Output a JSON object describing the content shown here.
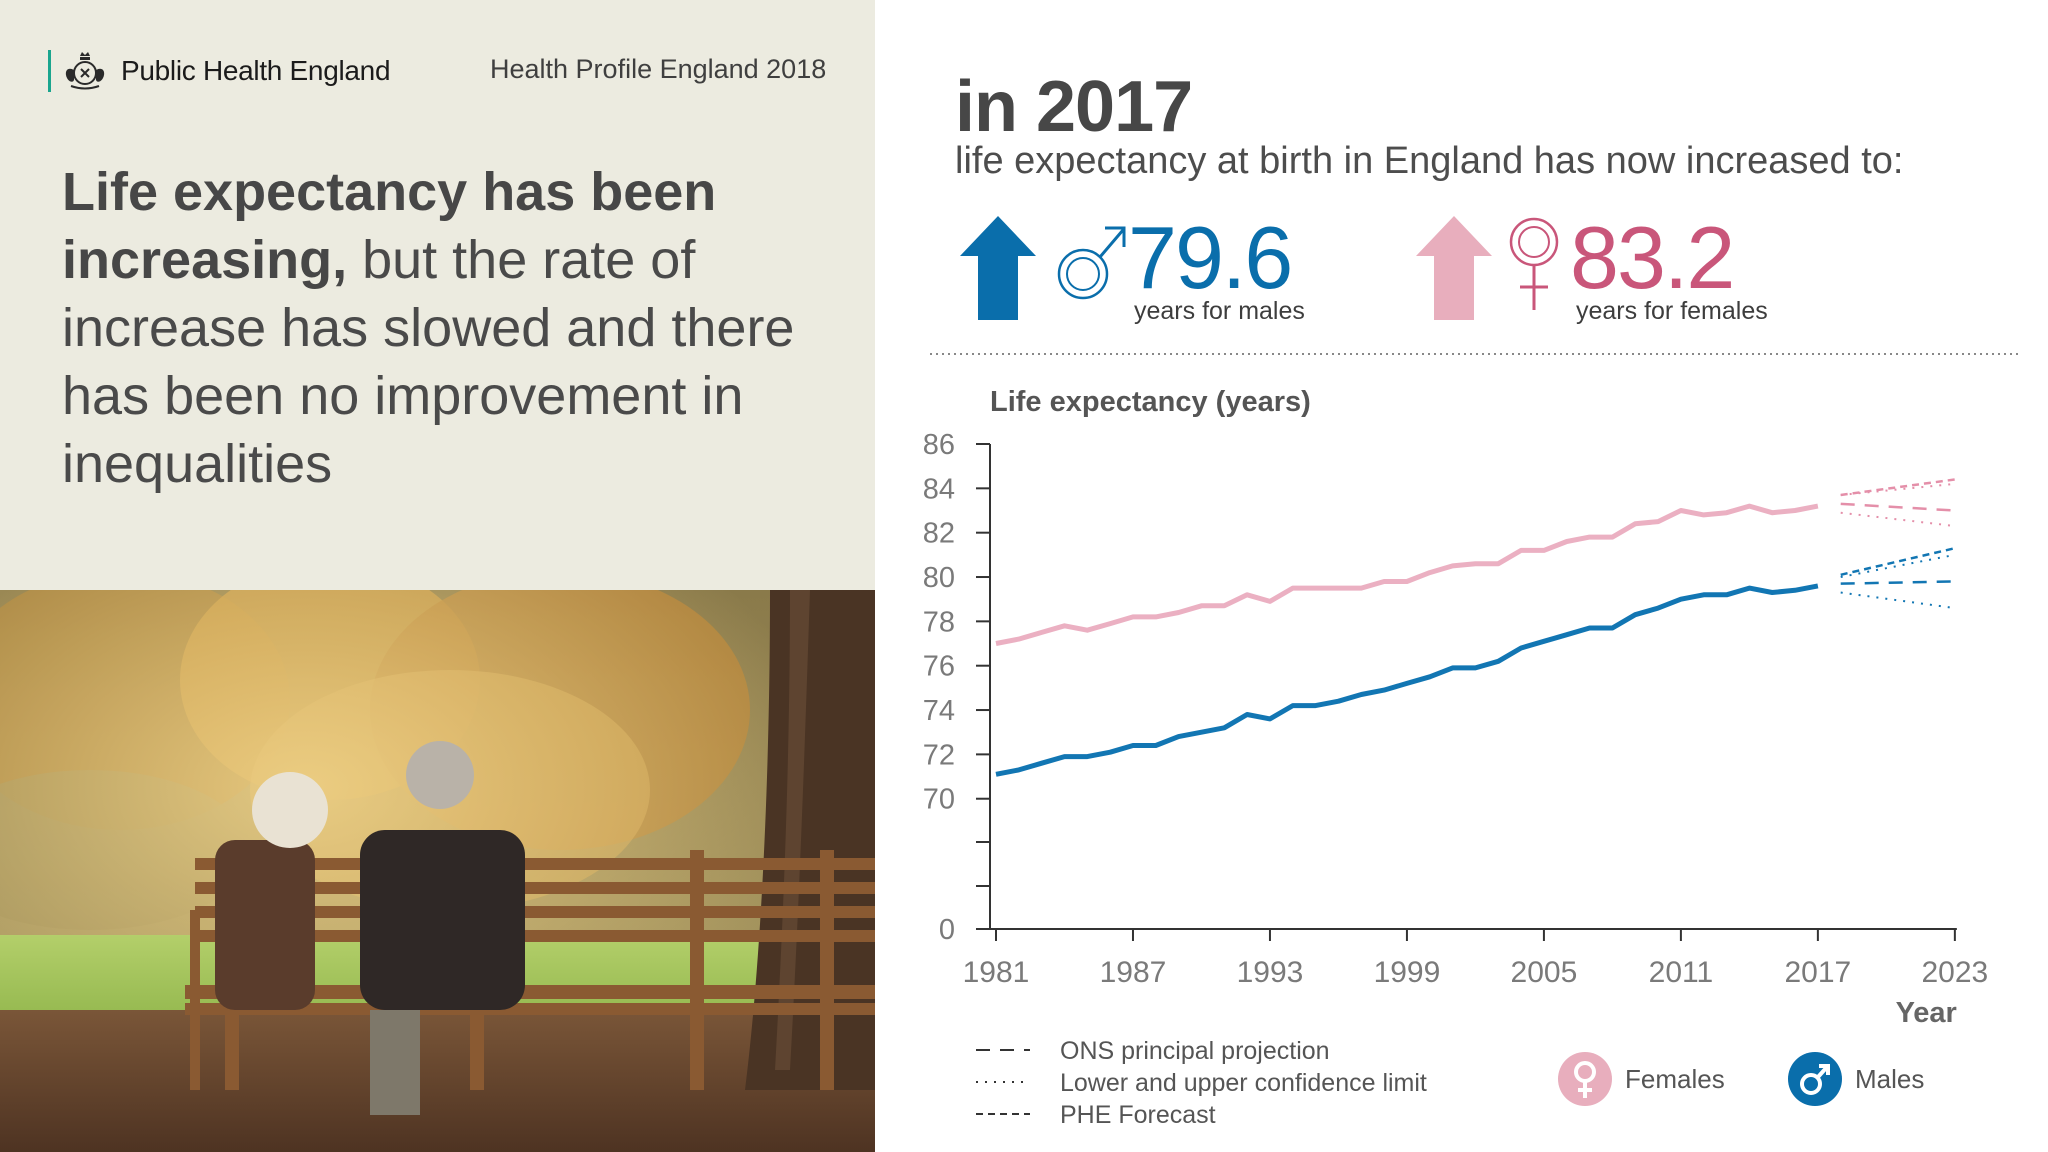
{
  "brand": {
    "name": "Public Health England",
    "report_title": "Health Profile England 2018"
  },
  "headline": {
    "bold": "Life expectancy has been increasing,",
    "rest": " but the rate of increase has slowed and there has been no improvement in inequalities"
  },
  "stats": {
    "year": "in 2017",
    "subtitle": "life expectancy at birth in England has now increased to:",
    "male": {
      "value": "79.6",
      "caption": "years for males",
      "color": "#0a6eab"
    },
    "female": {
      "value": "83.2",
      "caption": "years for females",
      "color": "#c9567a"
    }
  },
  "colors": {
    "male": "#1276b3",
    "female": "#ebb0c2",
    "male_arrow": "#0a6eab",
    "female_arrow": "#e8aebd",
    "panel": "#ecebe0"
  },
  "chart_data": {
    "type": "line",
    "ylabel": "Life expectancy (years)",
    "xlabel": "Year",
    "yticks": [
      "86",
      "84",
      "82",
      "80",
      "78",
      "76",
      "74",
      "72",
      "70",
      "0"
    ],
    "ylim_visible": [
      70,
      86
    ],
    "y_axis_break": true,
    "xticks": [
      "1981",
      "1987",
      "1993",
      "1999",
      "2005",
      "2011",
      "2017",
      "2023"
    ],
    "series": [
      {
        "name": "Females",
        "x": [
          1981,
          1982,
          1983,
          1984,
          1985,
          1986,
          1987,
          1988,
          1989,
          1990,
          1991,
          1992,
          1993,
          1994,
          1995,
          1996,
          1997,
          1998,
          1999,
          2000,
          2001,
          2002,
          2003,
          2004,
          2005,
          2006,
          2007,
          2008,
          2009,
          2010,
          2011,
          2012,
          2013,
          2014,
          2015,
          2016,
          2017
        ],
        "values": [
          77.0,
          77.2,
          77.5,
          77.8,
          77.6,
          77.9,
          78.2,
          78.2,
          78.4,
          78.7,
          78.7,
          79.2,
          78.9,
          79.5,
          79.5,
          79.5,
          79.5,
          79.8,
          79.8,
          80.2,
          80.5,
          80.6,
          80.6,
          81.2,
          81.2,
          81.6,
          81.8,
          81.8,
          82.4,
          82.5,
          83.0,
          82.8,
          82.9,
          83.2,
          82.9,
          83.0,
          83.2
        ]
      },
      {
        "name": "Males",
        "x": [
          1981,
          1982,
          1983,
          1984,
          1985,
          1986,
          1987,
          1988,
          1989,
          1990,
          1991,
          1992,
          1993,
          1994,
          1995,
          1996,
          1997,
          1998,
          1999,
          2000,
          2001,
          2002,
          2003,
          2004,
          2005,
          2006,
          2007,
          2008,
          2009,
          2010,
          2011,
          2012,
          2013,
          2014,
          2015,
          2016,
          2017
        ],
        "values": [
          71.1,
          71.3,
          71.6,
          71.9,
          71.9,
          72.1,
          72.4,
          72.4,
          72.8,
          73.0,
          73.2,
          73.8,
          73.6,
          74.2,
          74.2,
          74.4,
          74.7,
          74.9,
          75.2,
          75.5,
          75.9,
          75.9,
          76.2,
          76.8,
          77.1,
          77.4,
          77.7,
          77.7,
          78.3,
          78.6,
          79.0,
          79.2,
          79.2,
          79.5,
          79.3,
          79.4,
          79.6
        ]
      }
    ],
    "projections": [
      {
        "series": "Females",
        "kind": "ons",
        "x": [
          2018,
          2023
        ],
        "values": [
          83.3,
          83.0
        ]
      },
      {
        "series": "Females",
        "kind": "ci-upper",
        "x": [
          2018,
          2023
        ],
        "values": [
          83.7,
          84.2
        ]
      },
      {
        "series": "Females",
        "kind": "ci-lower",
        "x": [
          2018,
          2023
        ],
        "values": [
          82.9,
          82.3
        ]
      },
      {
        "series": "Females",
        "kind": "phe",
        "x": [
          2018,
          2023
        ],
        "values": [
          83.7,
          84.4
        ]
      },
      {
        "series": "Males",
        "kind": "ons",
        "x": [
          2018,
          2023
        ],
        "values": [
          79.7,
          79.8
        ]
      },
      {
        "series": "Males",
        "kind": "ci-upper",
        "x": [
          2018,
          2023
        ],
        "values": [
          80.0,
          81.0
        ]
      },
      {
        "series": "Males",
        "kind": "ci-lower",
        "x": [
          2018,
          2023
        ],
        "values": [
          79.3,
          78.6
        ]
      },
      {
        "series": "Males",
        "kind": "phe",
        "x": [
          2018,
          2023
        ],
        "values": [
          80.1,
          81.3
        ]
      }
    ],
    "legend": {
      "styles": [
        "ONS principal projection",
        "Lower and upper confidence limit",
        "PHE Forecast"
      ],
      "series": [
        "Females",
        "Males"
      ]
    }
  }
}
